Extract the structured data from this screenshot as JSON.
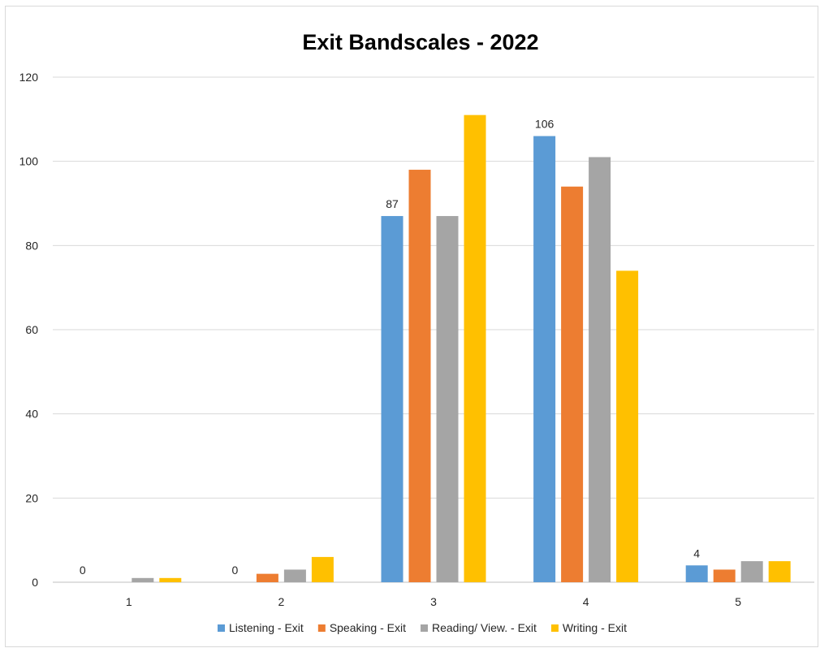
{
  "chart_data": {
    "type": "bar",
    "title": "Exit Bandscales - 2022",
    "xlabel": "",
    "ylabel": "",
    "ylim": [
      0,
      120
    ],
    "yticks": [
      0,
      20,
      40,
      60,
      80,
      100,
      120
    ],
    "categories": [
      "1",
      "2",
      "3",
      "4",
      "5"
    ],
    "grid": true,
    "legend_position": "bottom",
    "series": [
      {
        "name": "Listening - Exit",
        "color": "#5b9bd5",
        "values": [
          0,
          0,
          87,
          106,
          4
        ],
        "data_labels": [
          "0",
          "0",
          "87",
          "106",
          "4"
        ]
      },
      {
        "name": "Speaking - Exit",
        "color": "#ed7d31",
        "values": [
          0,
          2,
          98,
          94,
          3
        ]
      },
      {
        "name": "Reading/ View. - Exit",
        "color": "#a5a5a5",
        "values": [
          1,
          3,
          87,
          101,
          5
        ]
      },
      {
        "name": "Writing - Exit",
        "color": "#ffc000",
        "values": [
          1,
          6,
          111,
          74,
          5
        ]
      }
    ]
  }
}
